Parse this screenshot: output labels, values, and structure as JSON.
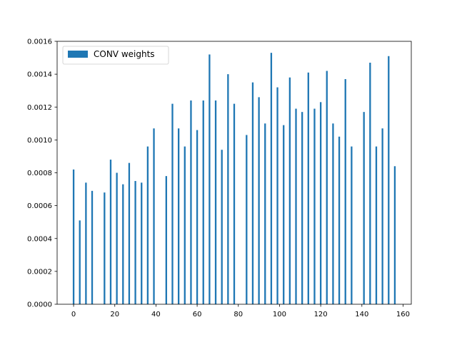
{
  "chart_data": {
    "type": "bar",
    "title": "",
    "xlabel": "",
    "ylabel": "",
    "xlim": [
      -8,
      164
    ],
    "ylim": [
      0,
      0.0016
    ],
    "bar_width": 0.8,
    "grid": false,
    "legend_position": "top-left",
    "xticks": [
      0,
      20,
      40,
      60,
      80,
      100,
      120,
      140,
      160
    ],
    "yticks": [
      "0.0000",
      "0.0002",
      "0.0004",
      "0.0006",
      "0.0008",
      "0.0010",
      "0.0012",
      "0.0014",
      "0.0016"
    ],
    "series": [
      {
        "name": "CONV weights",
        "color": "#1f77b4",
        "x": [
          0,
          3,
          6,
          9,
          15,
          18,
          21,
          24,
          27,
          30,
          33,
          36,
          39,
          45,
          48,
          51,
          54,
          57,
          60,
          63,
          66,
          69,
          72,
          75,
          78,
          84,
          87,
          90,
          93,
          96,
          99,
          102,
          105,
          108,
          111,
          114,
          117,
          120,
          123,
          126,
          129,
          132,
          135,
          141,
          144,
          147,
          150,
          153,
          156
        ],
        "values": [
          0.00082,
          0.00051,
          0.00074,
          0.00069,
          0.00068,
          0.00088,
          0.0008,
          0.00073,
          0.00086,
          0.00075,
          0.00074,
          0.00096,
          0.00107,
          0.00078,
          0.00122,
          0.00107,
          0.00096,
          0.00124,
          0.00106,
          0.00124,
          0.00152,
          0.00124,
          0.00094,
          0.0014,
          0.00122,
          0.00103,
          0.00135,
          0.00126,
          0.0011,
          0.00153,
          0.00132,
          0.00109,
          0.00138,
          0.00119,
          0.00117,
          0.00141,
          0.00119,
          0.00123,
          0.00142,
          0.0011,
          0.00102,
          0.00137,
          0.00096,
          0.00117,
          0.00147,
          0.00096,
          0.00107,
          0.00151,
          0.00084
        ]
      }
    ]
  }
}
